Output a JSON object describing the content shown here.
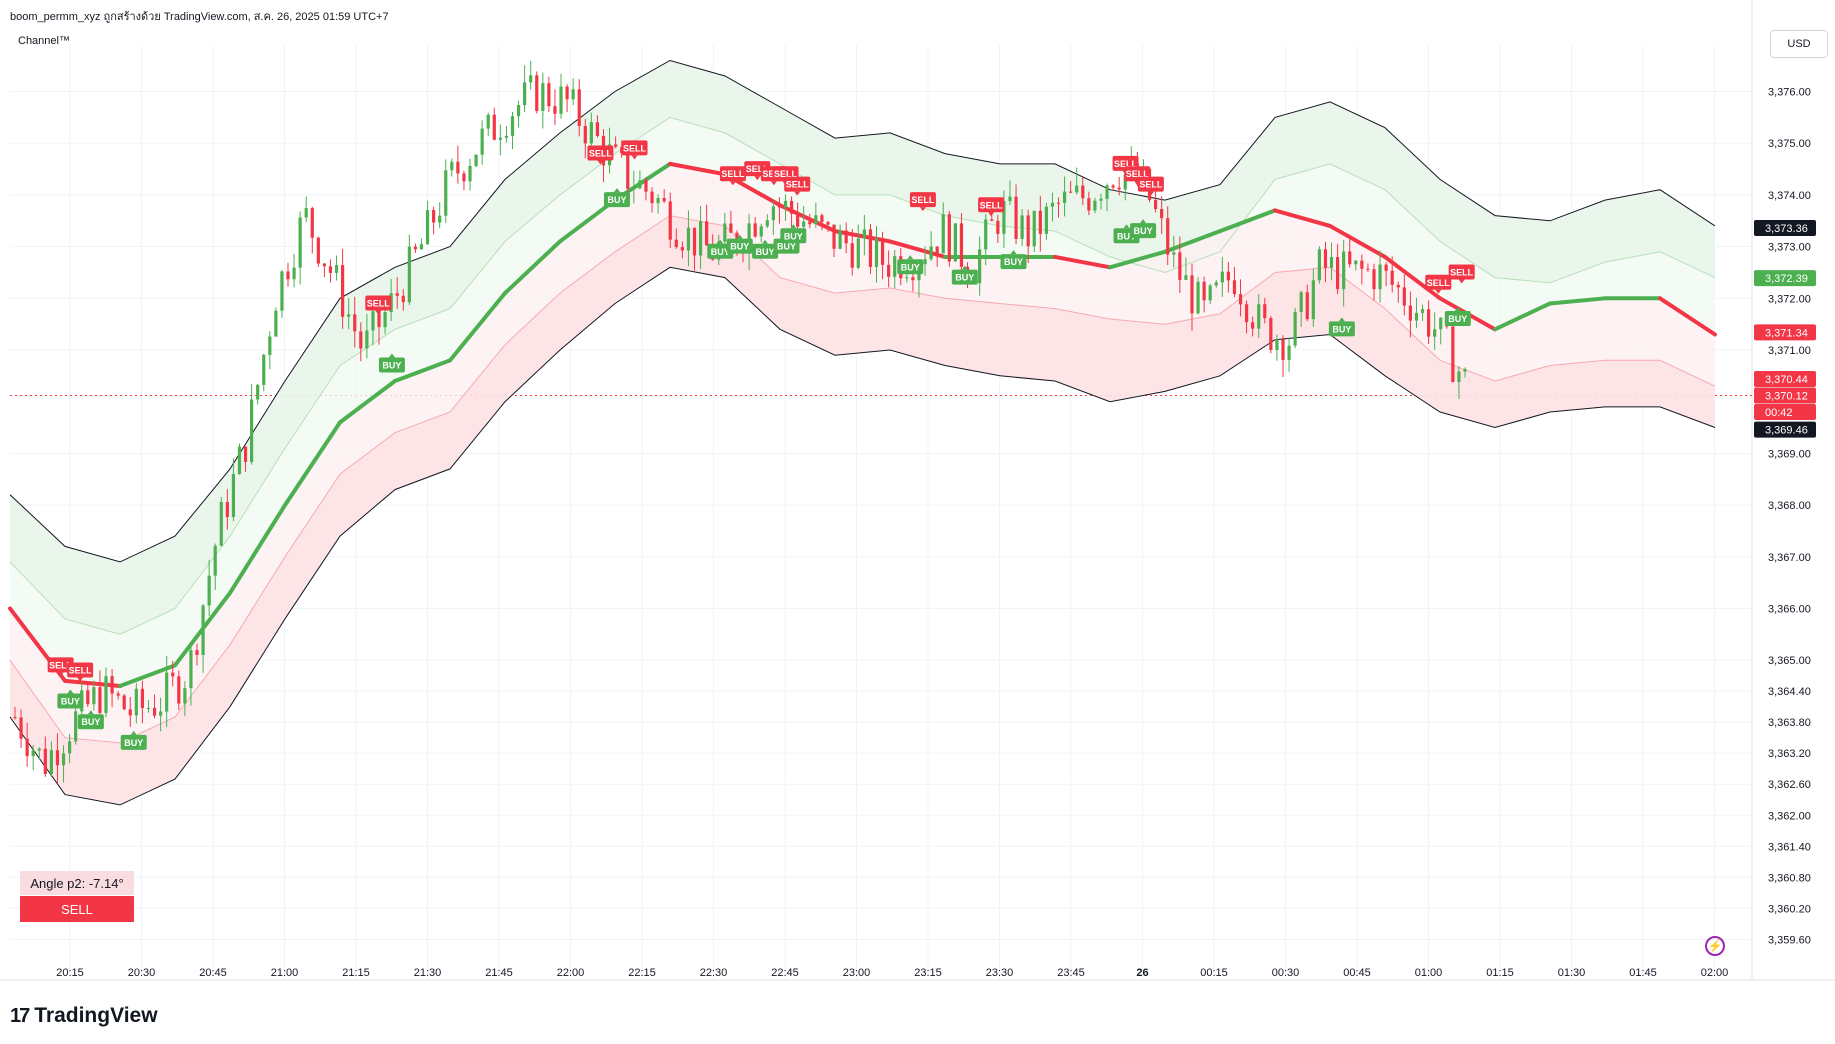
{
  "header": {
    "text": "boom_permm_xyz ถูกสร้างด้วย TradingView.com, ส.ค. 26, 2025 01:59 UTC+7",
    "indicator": "Channel™",
    "currency": "USD"
  },
  "panel": {
    "angle_label": "Angle p2: -7.14°",
    "signal": "SELL"
  },
  "branding": {
    "logo_text": "TradingView",
    "logo_mark": "17"
  },
  "icons": {
    "alert": "lightning-alert-icon"
  },
  "colors": {
    "up": "#089981",
    "bull": "#4caf50",
    "bear": "#f23645",
    "band_green": "#e8f5e9",
    "band_red": "#fde2e4"
  },
  "chart_data": {
    "type": "candlestick",
    "x_ticks": [
      "20:15",
      "20:30",
      "20:45",
      "21:00",
      "21:15",
      "21:30",
      "21:45",
      "22:00",
      "22:15",
      "22:30",
      "22:45",
      "23:00",
      "23:15",
      "23:30",
      "23:45",
      "26",
      "00:15",
      "00:30",
      "00:45",
      "01:00",
      "01:15",
      "01:30",
      "01:45",
      "02:00"
    ],
    "y_ticks": [
      "3,376.00",
      "3,375.00",
      "3,374.00",
      "3,373.00",
      "3,372.00",
      "3,371.00",
      "3,369.00",
      "3,368.00",
      "3,367.00",
      "3,366.00",
      "3,365.00",
      "3,364.40",
      "3,363.80",
      "3,363.20",
      "3,362.60",
      "3,362.00",
      "3,361.40",
      "3,360.80",
      "3,360.20",
      "3,359.60"
    ],
    "ylim": [
      3359.2,
      3376.9
    ],
    "price_tags": [
      {
        "label": "3,373.36",
        "value": 3373.36,
        "color": "#131722"
      },
      {
        "label": "3,372.39",
        "value": 3372.39,
        "color": "#4caf50"
      },
      {
        "label": "3,371.34",
        "value": 3371.34,
        "color": "#f23645"
      },
      {
        "label": "3,370.44",
        "value": 3370.44,
        "color": "#f23645"
      },
      {
        "label": "3,370.12",
        "value": 3370.12,
        "color": "#f23645"
      },
      {
        "label": "00:42",
        "value": 3369.8,
        "color": "#f23645"
      },
      {
        "label": "3,369.46",
        "value": 3369.46,
        "color": "#131722"
      }
    ],
    "last_price": 3370.12,
    "series": [
      {
        "name": "upper_outer",
        "values": [
          3368.2,
          3367.2,
          3366.9,
          3367.4,
          3368.7,
          3370.4,
          3372.0,
          3372.6,
          3373.0,
          3374.3,
          3375.2,
          3376.0,
          3376.6,
          3376.3,
          3375.7,
          3375.1,
          3375.2,
          3374.8,
          3374.6,
          3374.6,
          3374.1,
          3373.9,
          3374.2,
          3375.5,
          3375.8,
          3375.3,
          3374.3,
          3373.6,
          3373.5,
          3373.9,
          3374.1,
          3373.4
        ]
      },
      {
        "name": "upper_inner",
        "values": [
          3366.9,
          3365.8,
          3365.5,
          3366.0,
          3367.4,
          3369.1,
          3370.7,
          3371.4,
          3371.8,
          3373.1,
          3374.0,
          3374.8,
          3375.5,
          3375.2,
          3374.6,
          3374.0,
          3374.0,
          3373.6,
          3373.4,
          3373.3,
          3372.8,
          3372.5,
          3372.9,
          3374.3,
          3374.6,
          3374.1,
          3373.1,
          3372.4,
          3372.3,
          3372.7,
          3372.9,
          3372.4
        ]
      },
      {
        "name": "center",
        "values": [
          3366.0,
          3364.6,
          3364.5,
          3364.9,
          3366.3,
          3368.0,
          3369.6,
          3370.4,
          3370.8,
          3372.1,
          3373.1,
          3373.9,
          3374.6,
          3374.4,
          3373.8,
          3373.3,
          3373.1,
          3372.8,
          3372.8,
          3372.8,
          3372.6,
          3372.9,
          3373.3,
          3373.7,
          3373.4,
          3372.8,
          3372.0,
          3371.4,
          3371.9,
          3372.0,
          3372.0,
          3371.3
        ]
      },
      {
        "name": "lower_inner",
        "values": [
          3365.0,
          3363.5,
          3363.4,
          3363.9,
          3365.3,
          3367.0,
          3368.6,
          3369.4,
          3369.8,
          3371.1,
          3372.1,
          3372.9,
          3373.6,
          3373.4,
          3372.4,
          3372.1,
          3372.2,
          3372.0,
          3371.9,
          3371.8,
          3371.6,
          3371.5,
          3371.7,
          3372.5,
          3372.6,
          3371.8,
          3370.8,
          3370.4,
          3370.7,
          3370.8,
          3370.8,
          3370.3
        ]
      },
      {
        "name": "lower_outer",
        "values": [
          3363.9,
          3362.4,
          3362.2,
          3362.7,
          3364.1,
          3365.8,
          3367.4,
          3368.3,
          3368.7,
          3370.0,
          3371.0,
          3371.9,
          3372.6,
          3372.4,
          3371.4,
          3370.9,
          3371.0,
          3370.7,
          3370.5,
          3370.4,
          3370.0,
          3370.2,
          3370.5,
          3371.2,
          3371.3,
          3370.5,
          3369.8,
          3369.5,
          3369.8,
          3369.9,
          3369.9,
          3369.5
        ]
      },
      {
        "name": "price",
        "values": [
          3363.9,
          3363.0,
          3363.8,
          3364.4,
          3364.0,
          3364.2,
          3364.8,
          3367.5,
          3369.3,
          3372.1,
          3373.6,
          3372.4,
          3371.0,
          3371.9,
          3373.0,
          3374.3,
          3375.0,
          3375.6,
          3376.0,
          3375.8,
          3375.1,
          3374.4,
          3374.0,
          3373.3,
          3372.9,
          3373.2,
          3373.9,
          3373.6,
          3373.2,
          3373.0,
          3372.7,
          3372.8,
          3373.3,
          3372.6,
          3373.7,
          3373.2,
          3373.8,
          3374.0,
          3374.5,
          3374.1,
          3372.6,
          3371.7,
          3372.5,
          3371.4,
          3371.2,
          3372.6,
          3372.5,
          3372.5,
          3372.0,
          3371.4,
          3370.4
        ]
      }
    ],
    "signals": [
      {
        "label": "SELL",
        "x": 0.052,
        "value": 3364.9
      },
      {
        "label": "SELL",
        "x": 0.072,
        "value": 3364.8
      },
      {
        "label": "BUY",
        "x": 0.062,
        "value": 3364.2
      },
      {
        "label": "BUY",
        "x": 0.083,
        "value": 3363.8
      },
      {
        "label": "BUY",
        "x": 0.127,
        "value": 3363.4
      },
      {
        "label": "SELL",
        "x": 0.378,
        "value": 3371.9
      },
      {
        "label": "BUY",
        "x": 0.392,
        "value": 3370.7
      },
      {
        "label": "SELL",
        "x": 0.606,
        "value": 3374.8
      },
      {
        "label": "SELL",
        "x": 0.641,
        "value": 3374.9
      },
      {
        "label": "BUY",
        "x": 0.623,
        "value": 3373.9
      },
      {
        "label": "SELL",
        "x": 0.742,
        "value": 3374.4
      },
      {
        "label": "SELL",
        "x": 0.767,
        "value": 3374.5
      },
      {
        "label": "SELL",
        "x": 0.784,
        "value": 3374.4
      },
      {
        "label": "SELL",
        "x": 0.796,
        "value": 3374.4
      },
      {
        "label": "SELL",
        "x": 0.808,
        "value": 3374.2
      },
      {
        "label": "BUY",
        "x": 0.729,
        "value": 3372.9
      },
      {
        "label": "BUY",
        "x": 0.749,
        "value": 3373.0
      },
      {
        "label": "BUY",
        "x": 0.775,
        "value": 3372.9
      },
      {
        "label": "BUY",
        "x": 0.797,
        "value": 3373.0
      },
      {
        "label": "BUY",
        "x": 0.804,
        "value": 3373.2
      },
      {
        "label": "SELL",
        "x": 0.937,
        "value": 3373.9
      },
      {
        "label": "BUY",
        "x": 0.924,
        "value": 3372.6
      },
      {
        "label": "SELL",
        "x": 1.007,
        "value": 3373.8
      },
      {
        "label": "BUY",
        "x": 0.98,
        "value": 3372.4
      },
      {
        "label": "BUY",
        "x": 1.03,
        "value": 3372.7
      },
      {
        "label": "SELL",
        "x": 1.145,
        "value": 3374.6
      },
      {
        "label": "SELL",
        "x": 1.157,
        "value": 3374.4
      },
      {
        "label": "SELL",
        "x": 1.171,
        "value": 3374.2
      },
      {
        "label": "BUY",
        "x": 1.146,
        "value": 3373.2
      },
      {
        "label": "BUY",
        "x": 1.163,
        "value": 3373.3
      },
      {
        "label": "BUY",
        "x": 1.367,
        "value": 3371.4
      },
      {
        "label": "SELL",
        "x": 1.466,
        "value": 3372.3
      },
      {
        "label": "SELL",
        "x": 1.49,
        "value": 3372.5
      },
      {
        "label": "BUY",
        "x": 1.486,
        "value": 3371.6
      }
    ]
  }
}
